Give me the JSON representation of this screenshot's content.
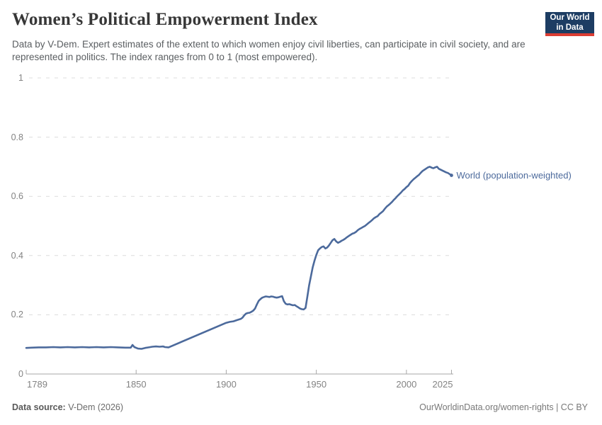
{
  "header": {
    "title": "Women’s Political Empowerment Index",
    "subtitle": "Data by V-Dem. Expert estimates of the extent to which women enjoy civil liberties, can participate in civil society, and are represented in politics. The index ranges from 0 to 1 (most empowered).",
    "logo_line1": "Our World",
    "logo_line2": "in Data"
  },
  "chart_data": {
    "type": "line",
    "title": "Women’s Political Empowerment Index",
    "xlabel": "",
    "ylabel": "",
    "x_domain": [
      1789,
      2026
    ],
    "y_domain": [
      0,
      1
    ],
    "x_ticks": [
      1789,
      1850,
      1900,
      1950,
      2000,
      2025
    ],
    "y_ticks": [
      0,
      0.2,
      0.4,
      0.6,
      0.8,
      1
    ],
    "grid": "dashed-horizontal",
    "legend_position": "end-of-line-label",
    "colors": {
      "line": "#4c6a9c",
      "gridline": "#dcdcdc",
      "axis": "#a7a7a7"
    },
    "series": [
      {
        "name": "World (population-weighted)",
        "color": "#4c6a9c",
        "points": [
          [
            1789,
            0.088
          ],
          [
            1792,
            0.089
          ],
          [
            1796,
            0.09
          ],
          [
            1800,
            0.09
          ],
          [
            1804,
            0.091
          ],
          [
            1808,
            0.09
          ],
          [
            1812,
            0.091
          ],
          [
            1816,
            0.09
          ],
          [
            1820,
            0.091
          ],
          [
            1824,
            0.09
          ],
          [
            1828,
            0.091
          ],
          [
            1832,
            0.09
          ],
          [
            1836,
            0.091
          ],
          [
            1840,
            0.09
          ],
          [
            1844,
            0.089
          ],
          [
            1847,
            0.089
          ],
          [
            1848,
            0.098
          ],
          [
            1849,
            0.091
          ],
          [
            1851,
            0.086
          ],
          [
            1853,
            0.085
          ],
          [
            1855,
            0.088
          ],
          [
            1857,
            0.09
          ],
          [
            1859,
            0.092
          ],
          [
            1861,
            0.093
          ],
          [
            1863,
            0.092
          ],
          [
            1865,
            0.093
          ],
          [
            1866,
            0.091
          ],
          [
            1868,
            0.09
          ],
          [
            1900,
            0.173
          ],
          [
            1902,
            0.176
          ],
          [
            1904,
            0.178
          ],
          [
            1906,
            0.182
          ],
          [
            1908,
            0.186
          ],
          [
            1909,
            0.19
          ],
          [
            1910,
            0.198
          ],
          [
            1911,
            0.204
          ],
          [
            1912,
            0.206
          ],
          [
            1913,
            0.207
          ],
          [
            1914,
            0.21
          ],
          [
            1915,
            0.214
          ],
          [
            1916,
            0.221
          ],
          [
            1917,
            0.235
          ],
          [
            1918,
            0.247
          ],
          [
            1919,
            0.253
          ],
          [
            1920,
            0.258
          ],
          [
            1921,
            0.26
          ],
          [
            1922,
            0.262
          ],
          [
            1923,
            0.261
          ],
          [
            1924,
            0.26
          ],
          [
            1925,
            0.262
          ],
          [
            1926,
            0.261
          ],
          [
            1927,
            0.259
          ],
          [
            1928,
            0.258
          ],
          [
            1929,
            0.259
          ],
          [
            1930,
            0.261
          ],
          [
            1931,
            0.263
          ],
          [
            1932,
            0.246
          ],
          [
            1933,
            0.237
          ],
          [
            1934,
            0.235
          ],
          [
            1935,
            0.236
          ],
          [
            1936,
            0.234
          ],
          [
            1937,
            0.232
          ],
          [
            1938,
            0.233
          ],
          [
            1939,
            0.229
          ],
          [
            1940,
            0.225
          ],
          [
            1941,
            0.221
          ],
          [
            1942,
            0.219
          ],
          [
            1943,
            0.218
          ],
          [
            1944,
            0.223
          ],
          [
            1945,
            0.26
          ],
          [
            1946,
            0.3
          ],
          [
            1947,
            0.33
          ],
          [
            1948,
            0.36
          ],
          [
            1949,
            0.383
          ],
          [
            1950,
            0.402
          ],
          [
            1951,
            0.418
          ],
          [
            1952,
            0.424
          ],
          [
            1953,
            0.429
          ],
          [
            1954,
            0.431
          ],
          [
            1955,
            0.424
          ],
          [
            1956,
            0.427
          ],
          [
            1957,
            0.434
          ],
          [
            1958,
            0.443
          ],
          [
            1959,
            0.452
          ],
          [
            1960,
            0.456
          ],
          [
            1961,
            0.448
          ],
          [
            1962,
            0.443
          ],
          [
            1963,
            0.446
          ],
          [
            1964,
            0.45
          ],
          [
            1965,
            0.453
          ],
          [
            1966,
            0.457
          ],
          [
            1967,
            0.462
          ],
          [
            1968,
            0.466
          ],
          [
            1969,
            0.47
          ],
          [
            1970,
            0.474
          ],
          [
            1971,
            0.476
          ],
          [
            1972,
            0.48
          ],
          [
            1973,
            0.486
          ],
          [
            1974,
            0.49
          ],
          [
            1975,
            0.493
          ],
          [
            1976,
            0.497
          ],
          [
            1977,
            0.5
          ],
          [
            1978,
            0.505
          ],
          [
            1979,
            0.51
          ],
          [
            1980,
            0.515
          ],
          [
            1981,
            0.52
          ],
          [
            1982,
            0.526
          ],
          [
            1983,
            0.53
          ],
          [
            1984,
            0.533
          ],
          [
            1985,
            0.54
          ],
          [
            1986,
            0.545
          ],
          [
            1987,
            0.55
          ],
          [
            1988,
            0.558
          ],
          [
            1989,
            0.565
          ],
          [
            1990,
            0.57
          ],
          [
            1991,
            0.575
          ],
          [
            1992,
            0.581
          ],
          [
            1993,
            0.588
          ],
          [
            1994,
            0.594
          ],
          [
            1995,
            0.601
          ],
          [
            1996,
            0.607
          ],
          [
            1997,
            0.613
          ],
          [
            1998,
            0.62
          ],
          [
            1999,
            0.625
          ],
          [
            2000,
            0.631
          ],
          [
            2001,
            0.636
          ],
          [
            2002,
            0.645
          ],
          [
            2003,
            0.652
          ],
          [
            2004,
            0.658
          ],
          [
            2005,
            0.663
          ],
          [
            2006,
            0.668
          ],
          [
            2007,
            0.673
          ],
          [
            2008,
            0.68
          ],
          [
            2009,
            0.686
          ],
          [
            2010,
            0.69
          ],
          [
            2011,
            0.694
          ],
          [
            2012,
            0.698
          ],
          [
            2013,
            0.7
          ],
          [
            2014,
            0.697
          ],
          [
            2015,
            0.695
          ],
          [
            2016,
            0.698
          ],
          [
            2017,
            0.7
          ],
          [
            2018,
            0.693
          ],
          [
            2019,
            0.69
          ],
          [
            2020,
            0.687
          ],
          [
            2021,
            0.684
          ],
          [
            2022,
            0.681
          ],
          [
            2023,
            0.679
          ],
          [
            2024,
            0.675
          ],
          [
            2025,
            0.671
          ]
        ]
      }
    ]
  },
  "footer": {
    "source_label": "Data source:",
    "source_value": " V-Dem (2026)",
    "right_text": "OurWorldinData.org/women-rights | CC BY"
  }
}
